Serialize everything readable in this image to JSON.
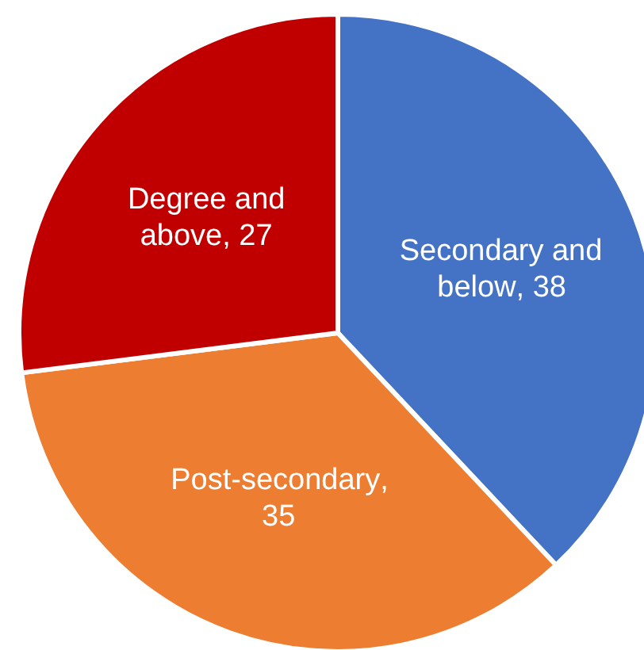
{
  "chart_data": {
    "type": "pie",
    "categories": [
      "Secondary and below",
      "Post-secondary",
      "Degree and above"
    ],
    "values": [
      38,
      35,
      27
    ],
    "value_labels": [
      ", 38",
      ", 35",
      ", 27"
    ],
    "colors": [
      "#4472c4",
      "#ed7d31",
      "#c00000"
    ]
  }
}
